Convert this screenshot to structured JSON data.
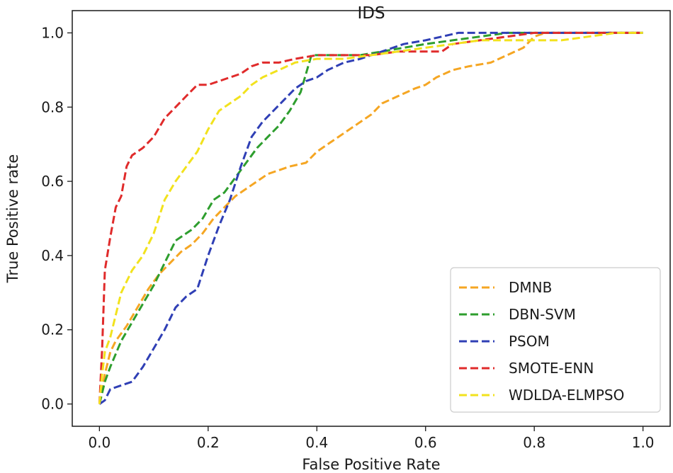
{
  "chart_data": {
    "type": "line",
    "title": "IDS",
    "xlabel": "False Positive Rate",
    "ylabel": "True Positive rate",
    "xlim": [
      -0.05,
      1.05
    ],
    "ylim": [
      -0.06,
      1.06
    ],
    "xticks": [
      "0.0",
      "0.2",
      "0.4",
      "0.6",
      "0.8",
      "1.0"
    ],
    "yticks": [
      "0.0",
      "0.2",
      "0.4",
      "0.6",
      "0.8",
      "1.0"
    ],
    "grid": false,
    "legend_position": "lower-right",
    "line_style": "dashed",
    "series": [
      {
        "name": "DMNB",
        "color": "#f5a623",
        "x": [
          0.0,
          0.01,
          0.02,
          0.03,
          0.05,
          0.07,
          0.09,
          0.11,
          0.13,
          0.15,
          0.17,
          0.19,
          0.21,
          0.23,
          0.25,
          0.27,
          0.29,
          0.31,
          0.33,
          0.35,
          0.38,
          0.4,
          0.42,
          0.45,
          0.48,
          0.5,
          0.52,
          0.55,
          0.58,
          0.6,
          0.62,
          0.65,
          0.68,
          0.72,
          0.75,
          0.78,
          0.8,
          0.82,
          0.85,
          0.9,
          0.95,
          1.0
        ],
        "y": [
          0.0,
          0.08,
          0.14,
          0.17,
          0.21,
          0.26,
          0.31,
          0.35,
          0.38,
          0.41,
          0.43,
          0.46,
          0.5,
          0.53,
          0.56,
          0.58,
          0.6,
          0.62,
          0.63,
          0.64,
          0.65,
          0.68,
          0.7,
          0.73,
          0.76,
          0.78,
          0.81,
          0.83,
          0.85,
          0.86,
          0.88,
          0.9,
          0.91,
          0.92,
          0.94,
          0.96,
          0.99,
          1.0,
          1.0,
          1.0,
          1.0,
          1.0
        ]
      },
      {
        "name": "DBN-SVM",
        "color": "#2e9e2e",
        "x": [
          0.0,
          0.01,
          0.02,
          0.04,
          0.06,
          0.08,
          0.1,
          0.12,
          0.14,
          0.17,
          0.19,
          0.21,
          0.23,
          0.25,
          0.27,
          0.29,
          0.31,
          0.33,
          0.35,
          0.37,
          0.39,
          0.41,
          0.44,
          0.48,
          0.52,
          0.56,
          0.6,
          0.65,
          0.7,
          0.75,
          0.8,
          0.85,
          0.9,
          0.95,
          1.0
        ],
        "y": [
          0.0,
          0.06,
          0.1,
          0.17,
          0.22,
          0.27,
          0.32,
          0.38,
          0.44,
          0.47,
          0.5,
          0.55,
          0.57,
          0.61,
          0.65,
          0.69,
          0.72,
          0.75,
          0.79,
          0.84,
          0.94,
          0.94,
          0.94,
          0.94,
          0.95,
          0.96,
          0.97,
          0.98,
          0.99,
          1.0,
          1.0,
          1.0,
          1.0,
          1.0,
          1.0
        ]
      },
      {
        "name": "PSOM",
        "color": "#2f3fb5",
        "x": [
          0.0,
          0.01,
          0.02,
          0.04,
          0.06,
          0.08,
          0.1,
          0.12,
          0.14,
          0.16,
          0.18,
          0.2,
          0.22,
          0.24,
          0.26,
          0.28,
          0.3,
          0.32,
          0.34,
          0.36,
          0.38,
          0.4,
          0.42,
          0.45,
          0.48,
          0.52,
          0.56,
          0.6,
          0.63,
          0.66,
          0.7,
          0.75,
          0.8,
          0.85,
          0.9,
          0.95,
          1.0
        ],
        "y": [
          0.0,
          0.01,
          0.04,
          0.05,
          0.06,
          0.1,
          0.15,
          0.2,
          0.26,
          0.29,
          0.31,
          0.4,
          0.48,
          0.55,
          0.64,
          0.72,
          0.76,
          0.79,
          0.82,
          0.85,
          0.87,
          0.88,
          0.9,
          0.92,
          0.93,
          0.95,
          0.97,
          0.98,
          0.99,
          1.0,
          1.0,
          1.0,
          1.0,
          1.0,
          1.0,
          1.0,
          1.0
        ]
      },
      {
        "name": "SMOTE-ENN",
        "color": "#e02b2b",
        "x": [
          0.0,
          0.005,
          0.01,
          0.02,
          0.03,
          0.04,
          0.05,
          0.06,
          0.08,
          0.1,
          0.12,
          0.14,
          0.16,
          0.18,
          0.2,
          0.22,
          0.24,
          0.26,
          0.28,
          0.3,
          0.33,
          0.36,
          0.4,
          0.45,
          0.5,
          0.55,
          0.6,
          0.63,
          0.65,
          0.7,
          0.75,
          0.8,
          0.85,
          0.9,
          0.95,
          1.0
        ],
        "y": [
          0.0,
          0.15,
          0.36,
          0.45,
          0.53,
          0.56,
          0.64,
          0.67,
          0.69,
          0.72,
          0.77,
          0.8,
          0.83,
          0.86,
          0.86,
          0.87,
          0.88,
          0.89,
          0.91,
          0.92,
          0.92,
          0.93,
          0.94,
          0.94,
          0.94,
          0.95,
          0.95,
          0.95,
          0.97,
          0.98,
          0.99,
          1.0,
          1.0,
          1.0,
          1.0,
          1.0
        ]
      },
      {
        "name": "WDLDA-ELMPSO",
        "color": "#f2e21d",
        "x": [
          0.0,
          0.005,
          0.01,
          0.02,
          0.03,
          0.04,
          0.05,
          0.06,
          0.08,
          0.1,
          0.12,
          0.14,
          0.16,
          0.18,
          0.2,
          0.22,
          0.24,
          0.26,
          0.28,
          0.3,
          0.33,
          0.36,
          0.4,
          0.45,
          0.5,
          0.55,
          0.6,
          0.65,
          0.7,
          0.75,
          0.8,
          0.85,
          0.9,
          0.95,
          1.0
        ],
        "y": [
          0.0,
          0.08,
          0.14,
          0.18,
          0.24,
          0.3,
          0.33,
          0.36,
          0.4,
          0.46,
          0.55,
          0.6,
          0.64,
          0.68,
          0.74,
          0.79,
          0.81,
          0.83,
          0.86,
          0.88,
          0.9,
          0.92,
          0.93,
          0.93,
          0.94,
          0.95,
          0.96,
          0.97,
          0.98,
          0.98,
          0.98,
          0.98,
          0.99,
          1.0,
          1.0
        ]
      }
    ]
  }
}
